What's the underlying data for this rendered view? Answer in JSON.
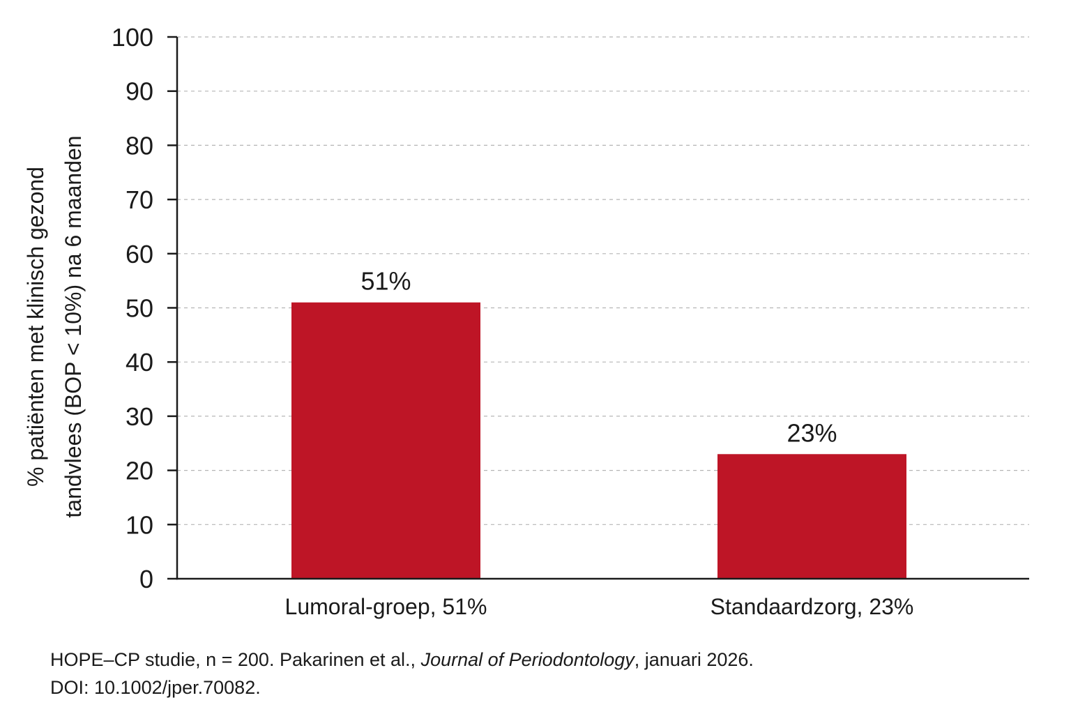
{
  "chart_data": {
    "type": "bar",
    "title": "",
    "xlabel": "",
    "ylabel_lines": [
      "% patiënten met klinisch gezond",
      "tandvlees (BOP < 10%) na 6 maanden"
    ],
    "ylim": [
      0,
      100
    ],
    "yticks": [
      0,
      10,
      20,
      30,
      40,
      50,
      60,
      70,
      80,
      90,
      100
    ],
    "grid": "horizontal dashed",
    "categories": [
      "Lumoral-groep, 51%",
      "Standaardzorg, 23%"
    ],
    "values": [
      51,
      23
    ],
    "data_labels": [
      "51%",
      "23%"
    ],
    "bar_color": "#be1526",
    "gridline_color": "#b5b5b5",
    "axis_color": "#1a1a1a"
  },
  "footnote": {
    "line1_prefix": "HOPE–CP studie, n = 200. Pakarinen et al., ",
    "journal": "Journal of Periodontology",
    "line1_suffix": ", januari 2026.",
    "line2": "DOI: 10.1002/jper.70082."
  }
}
